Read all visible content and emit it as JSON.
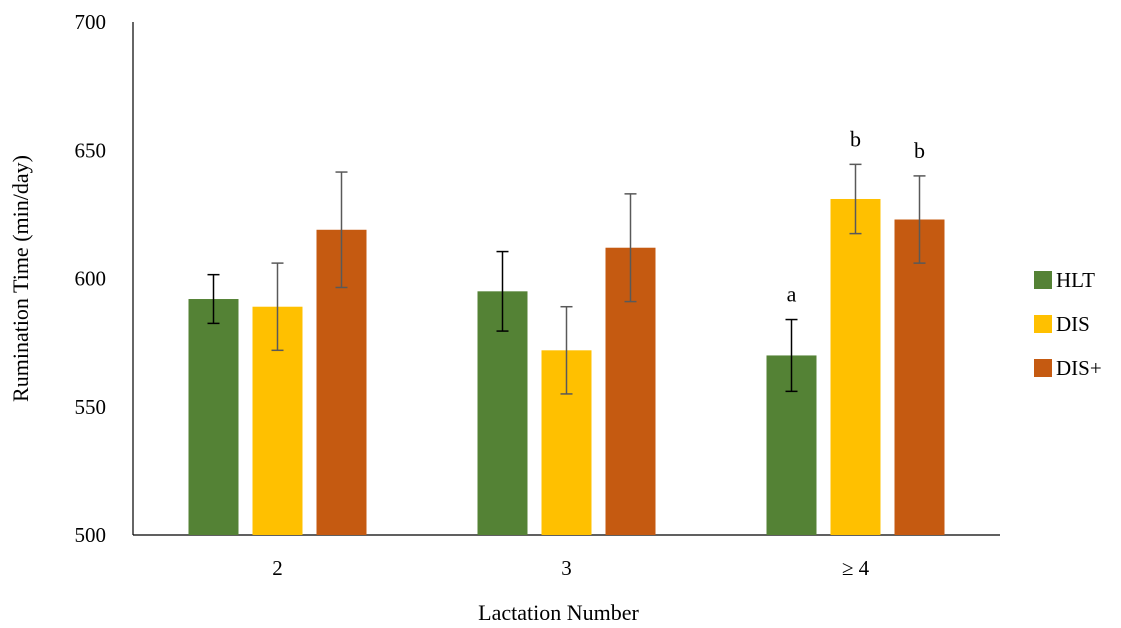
{
  "chart_data": {
    "type": "bar",
    "xlabel": "Lactation Number",
    "ylabel": "Rumination Time (min/day)",
    "ylim": [
      500,
      700
    ],
    "yticks": [
      500,
      550,
      600,
      650,
      700
    ],
    "categories": [
      "2",
      "3",
      "≥ 4"
    ],
    "grid": false,
    "legend_position": "right",
    "series": [
      {
        "name": "HLT",
        "color": "#548235",
        "values": [
          592,
          595,
          570
        ],
        "errors": [
          9.5,
          15.5,
          14
        ]
      },
      {
        "name": "DIS",
        "color": "#FFC000",
        "values": [
          589,
          572,
          631
        ],
        "errors": [
          17,
          17,
          13.5
        ]
      },
      {
        "name": "DIS+",
        "color": "#C55A11",
        "values": [
          619,
          612,
          623
        ],
        "errors": [
          22.5,
          21,
          17
        ]
      }
    ],
    "annotations": [
      {
        "category": "≥ 4",
        "series": "HLT",
        "text": "a"
      },
      {
        "category": "≥ 4",
        "series": "DIS",
        "text": "b"
      },
      {
        "category": "≥ 4",
        "series": "DIS+",
        "text": "b"
      }
    ]
  }
}
